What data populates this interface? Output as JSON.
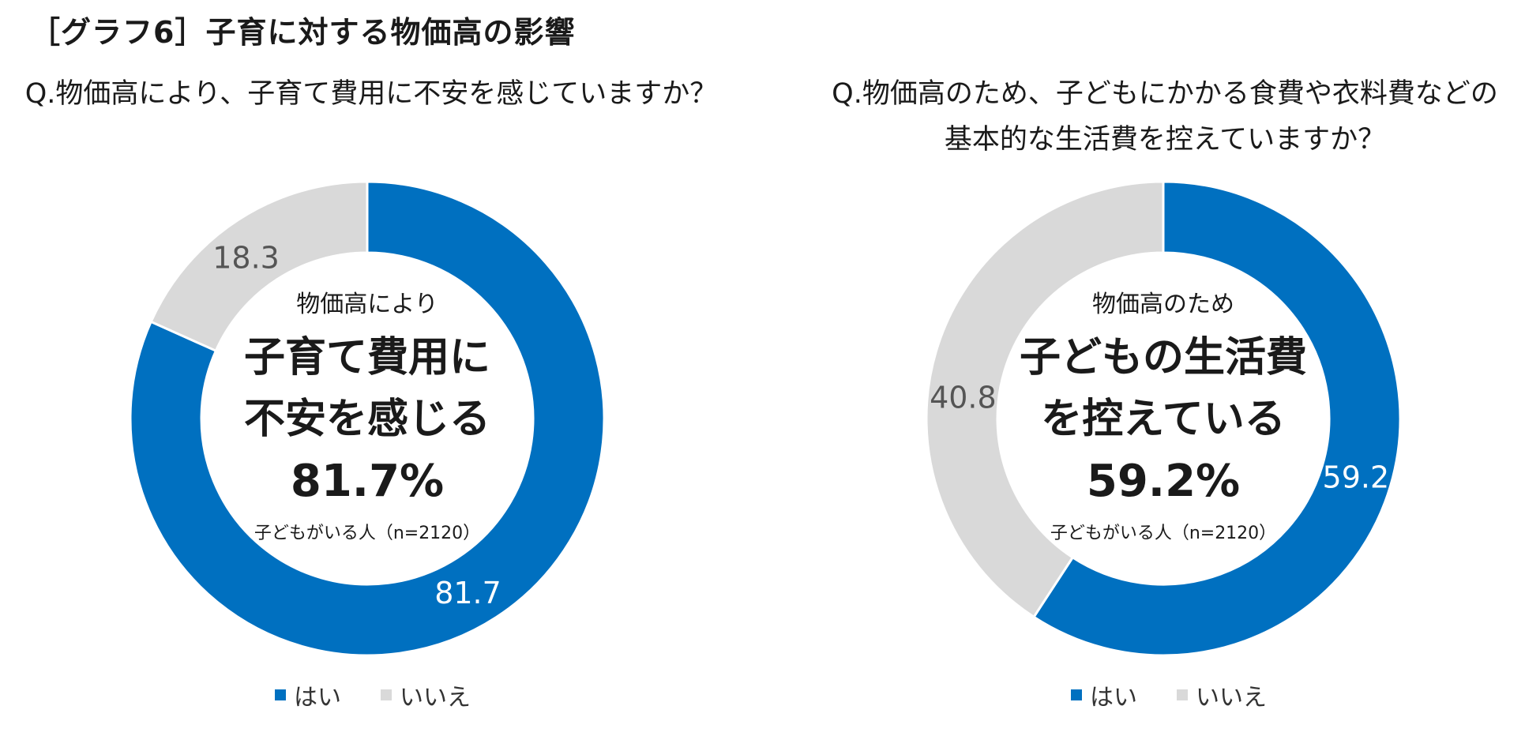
{
  "title": "［グラフ6］子育に対する物価高の影響",
  "colors": {
    "yes": "#0070C0",
    "no": "#D9D9D9"
  },
  "chart_data": [
    {
      "type": "pie",
      "variant": "donut",
      "question": "Q.物価高により、子育て費用に不安を感じていますか？",
      "categories": [
        "はい",
        "いいえ"
      ],
      "values": [
        81.7,
        18.3
      ],
      "data_labels": [
        "81.7",
        "18.3"
      ],
      "center": {
        "sub": "物価高により",
        "main_line1": "子育て費用に",
        "main_line2": "不安を感じる",
        "percent": "81.7%",
        "note": "子どもがいる人（n=2120）"
      },
      "legend": [
        "はい",
        "いいえ"
      ],
      "legend_position": "bottom"
    },
    {
      "type": "pie",
      "variant": "donut",
      "question_line1": "Q.物価高のため、子どもにかかる食費や衣料費などの",
      "question_line2": "基本的な生活費を控えていますか？",
      "categories": [
        "はい",
        "いいえ"
      ],
      "values": [
        59.2,
        40.8
      ],
      "data_labels": [
        "59.2",
        "40.8"
      ],
      "center": {
        "sub": "物価高のため",
        "main_line1": "子どもの生活費",
        "main_line2": "を控えている",
        "percent": "59.2%",
        "note": "子どもがいる人（n=2120）"
      },
      "legend": [
        "はい",
        "いいえ"
      ],
      "legend_position": "bottom"
    }
  ]
}
